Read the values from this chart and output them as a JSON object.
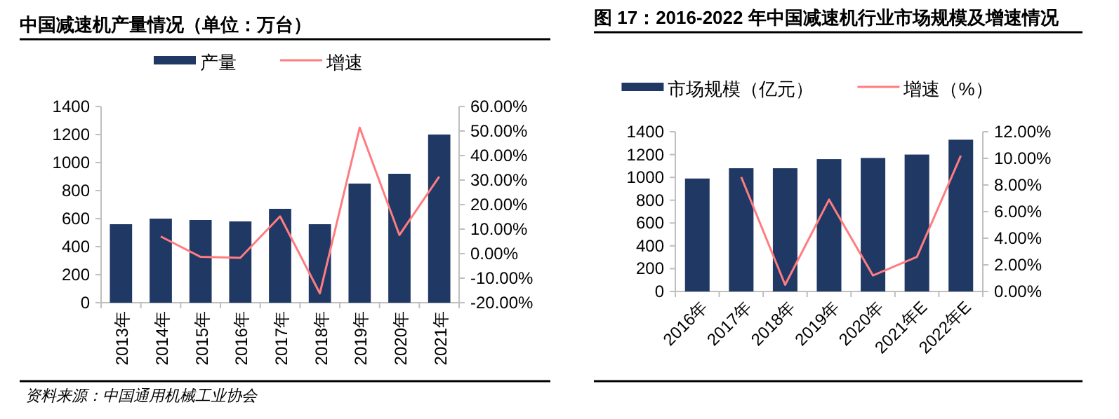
{
  "chart_data": [
    {
      "type": "bar",
      "title": "中国减速机产量情况（单位：万台）",
      "annotations": [
        "资料来源：中国通用机械工业协会"
      ],
      "categories": [
        "2013年",
        "2014年",
        "2015年",
        "2016年",
        "2017年",
        "2018年",
        "2019年",
        "2020年",
        "2021年"
      ],
      "series": [
        {
          "name": "产量",
          "color": "#203864",
          "values": [
            560,
            600,
            590,
            580,
            670,
            560,
            850,
            920,
            1200
          ]
        },
        {
          "name": "增速",
          "type": "line",
          "axis": "y2",
          "color": "#ff7c80",
          "values": [
            null,
            7,
            -1.3,
            -1.7,
            15.2,
            -16.2,
            51.4,
            7.6,
            31.4
          ]
        }
      ],
      "ylim": [
        0,
        1400
      ],
      "yticks": [
        0,
        200,
        400,
        600,
        800,
        1000,
        1200,
        1400
      ],
      "y2lim": [
        -20,
        60
      ],
      "y2ticks": [
        {
          "value": -20,
          "label": "-20.00%"
        },
        {
          "value": -10,
          "label": "-10.00%"
        },
        {
          "value": 0,
          "label": "0.00%"
        },
        {
          "value": 10,
          "label": "10.00%"
        },
        {
          "value": 20,
          "label": "20.00%"
        },
        {
          "value": 30,
          "label": "30.00%"
        },
        {
          "value": 40,
          "label": "40.00%"
        },
        {
          "value": 50,
          "label": "50.00%"
        },
        {
          "value": 60,
          "label": "60.00%"
        }
      ],
      "legend": "top"
    },
    {
      "type": "bar",
      "title": "图 17：2016-2022 年中国减速机行业市场规模及增速情况",
      "categories": [
        "2016年",
        "2017年",
        "2018年",
        "2019年",
        "2020年",
        "2021年E",
        "2022年E"
      ],
      "series": [
        {
          "name": "市场规模（亿元）",
          "color": "#203864",
          "values": [
            990,
            1080,
            1080,
            1160,
            1170,
            1200,
            1330
          ]
        },
        {
          "name": "增速（%）",
          "type": "line",
          "axis": "y2",
          "color": "#ff7c80",
          "values": [
            null,
            8.6,
            0.5,
            6.9,
            1.2,
            2.6,
            10.2
          ]
        }
      ],
      "ylim": [
        0,
        1400
      ],
      "yticks": [
        0,
        200,
        400,
        600,
        800,
        1000,
        1200,
        1400
      ],
      "y2lim": [
        0,
        12
      ],
      "y2ticks": [
        {
          "value": 0,
          "label": "0.00%"
        },
        {
          "value": 2,
          "label": "2.00%"
        },
        {
          "value": 4,
          "label": "4.00%"
        },
        {
          "value": 6,
          "label": "6.00%"
        },
        {
          "value": 8,
          "label": "8.00%"
        },
        {
          "value": 10,
          "label": "10.00%"
        },
        {
          "value": 12,
          "label": "12.00%"
        }
      ],
      "legend": "top"
    }
  ]
}
